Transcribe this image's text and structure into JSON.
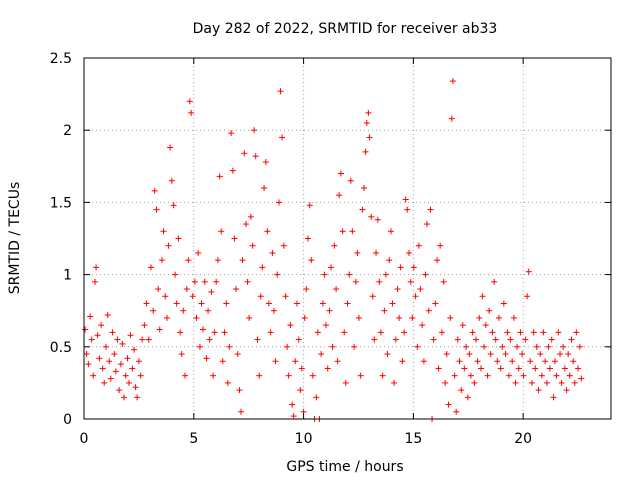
{
  "chart_data": {
    "type": "scatter",
    "title": "Day 282 of 2022, SRMTID for receiver ab33",
    "xlabel": "GPS time / hours",
    "ylabel": "SRMTID / TECUs",
    "xlim": [
      0,
      24
    ],
    "ylim": [
      0,
      2.5
    ],
    "xticks": [
      0,
      5,
      10,
      15,
      20
    ],
    "xtick_labels": [
      "0",
      "5",
      "10",
      "15",
      "20"
    ],
    "yticks": [
      0,
      0.5,
      1,
      1.5,
      2,
      2.5
    ],
    "ytick_labels": [
      "0",
      "0.5",
      "1",
      "1.5",
      "2",
      "2.5"
    ],
    "grid": true,
    "marker": "+",
    "color": "#ff0000",
    "series": [
      {
        "name": "SRMTID",
        "points": [
          [
            0.05,
            0.62
          ],
          [
            0.12,
            0.45
          ],
          [
            0.2,
            0.38
          ],
          [
            0.28,
            0.71
          ],
          [
            0.35,
            0.55
          ],
          [
            0.42,
            0.3
          ],
          [
            0.5,
            0.95
          ],
          [
            0.55,
            1.05
          ],
          [
            0.62,
            0.58
          ],
          [
            0.7,
            0.42
          ],
          [
            0.78,
            0.65
          ],
          [
            0.85,
            0.35
          ],
          [
            0.92,
            0.25
          ],
          [
            1.0,
            0.5
          ],
          [
            1.08,
            0.72
          ],
          [
            1.15,
            0.4
          ],
          [
            1.22,
            0.28
          ],
          [
            1.3,
            0.6
          ],
          [
            1.38,
            0.45
          ],
          [
            1.45,
            0.33
          ],
          [
            1.52,
            0.55
          ],
          [
            1.6,
            0.2
          ],
          [
            1.68,
            0.38
          ],
          [
            1.75,
            0.52
          ],
          [
            1.82,
            0.15
          ],
          [
            1.9,
            0.3
          ],
          [
            1.98,
            0.42
          ],
          [
            2.05,
            0.25
          ],
          [
            2.12,
            0.58
          ],
          [
            2.2,
            0.35
          ],
          [
            2.28,
            0.48
          ],
          [
            2.35,
            0.22
          ],
          [
            2.42,
            0.15
          ],
          [
            2.5,
            0.4
          ],
          [
            2.58,
            0.3
          ],
          [
            2.65,
            0.55
          ],
          [
            2.75,
            0.65
          ],
          [
            2.85,
            0.8
          ],
          [
            2.95,
            0.55
          ],
          [
            3.05,
            1.05
          ],
          [
            3.15,
            0.75
          ],
          [
            3.22,
            1.58
          ],
          [
            3.3,
            1.45
          ],
          [
            3.38,
            0.9
          ],
          [
            3.45,
            0.62
          ],
          [
            3.55,
            1.1
          ],
          [
            3.62,
            1.3
          ],
          [
            3.7,
            0.85
          ],
          [
            3.78,
            0.7
          ],
          [
            3.85,
            1.2
          ],
          [
            3.92,
            1.88
          ],
          [
            4.0,
            1.65
          ],
          [
            4.08,
            1.48
          ],
          [
            4.15,
            1.0
          ],
          [
            4.22,
            0.8
          ],
          [
            4.3,
            1.25
          ],
          [
            4.38,
            0.6
          ],
          [
            4.45,
            0.45
          ],
          [
            4.52,
            0.75
          ],
          [
            4.6,
            0.3
          ],
          [
            4.68,
            0.9
          ],
          [
            4.75,
            1.1
          ],
          [
            4.82,
            2.2
          ],
          [
            4.88,
            2.12
          ],
          [
            4.95,
            0.85
          ],
          [
            5.05,
            0.95
          ],
          [
            5.12,
            0.7
          ],
          [
            5.2,
            1.15
          ],
          [
            5.28,
            0.5
          ],
          [
            5.35,
            0.8
          ],
          [
            5.42,
            0.62
          ],
          [
            5.5,
            0.95
          ],
          [
            5.58,
            0.42
          ],
          [
            5.65,
            0.75
          ],
          [
            5.72,
            0.55
          ],
          [
            5.8,
            0.88
          ],
          [
            5.88,
            0.3
          ],
          [
            5.95,
            0.6
          ],
          [
            6.02,
            0.95
          ],
          [
            6.1,
            1.1
          ],
          [
            6.18,
            1.68
          ],
          [
            6.25,
            1.3
          ],
          [
            6.32,
            0.4
          ],
          [
            6.4,
            0.6
          ],
          [
            6.48,
            0.8
          ],
          [
            6.55,
            0.25
          ],
          [
            6.62,
            0.5
          ],
          [
            6.7,
            1.98
          ],
          [
            6.78,
            1.72
          ],
          [
            6.85,
            1.25
          ],
          [
            6.92,
            0.9
          ],
          [
            7.0,
            0.45
          ],
          [
            7.08,
            0.2
          ],
          [
            7.15,
            0.05
          ],
          [
            7.22,
            1.1
          ],
          [
            7.3,
            1.84
          ],
          [
            7.38,
            1.35
          ],
          [
            7.45,
            0.95
          ],
          [
            7.52,
            0.7
          ],
          [
            7.6,
            1.4
          ],
          [
            7.68,
            1.2
          ],
          [
            7.75,
            2.0
          ],
          [
            7.82,
            1.82
          ],
          [
            7.9,
            0.55
          ],
          [
            7.98,
            0.3
          ],
          [
            8.05,
            0.85
          ],
          [
            8.12,
            1.05
          ],
          [
            8.2,
            1.6
          ],
          [
            8.28,
            1.78
          ],
          [
            8.35,
            1.3
          ],
          [
            8.42,
            0.8
          ],
          [
            8.5,
            0.6
          ],
          [
            8.58,
            1.15
          ],
          [
            8.65,
            0.75
          ],
          [
            8.72,
            0.4
          ],
          [
            8.8,
            1.0
          ],
          [
            8.88,
            1.5
          ],
          [
            8.95,
            2.27
          ],
          [
            9.02,
            1.95
          ],
          [
            9.1,
            1.2
          ],
          [
            9.18,
            0.85
          ],
          [
            9.25,
            0.5
          ],
          [
            9.32,
            0.3
          ],
          [
            9.4,
            0.65
          ],
          [
            9.48,
            0.1
          ],
          [
            9.55,
            0.02
          ],
          [
            9.62,
            0.4
          ],
          [
            9.7,
            0.8
          ],
          [
            9.78,
            0.55
          ],
          [
            9.85,
            0.2
          ],
          [
            9.92,
            0.35
          ],
          [
            10.0,
            0.05
          ],
          [
            10.05,
            0.7
          ],
          [
            10.12,
            0.9
          ],
          [
            10.2,
            1.25
          ],
          [
            10.28,
            1.48
          ],
          [
            10.35,
            1.1
          ],
          [
            10.42,
            0.3
          ],
          [
            10.5,
            0.0
          ],
          [
            10.58,
            0.15
          ],
          [
            10.65,
            0.6
          ],
          [
            10.72,
            0.0
          ],
          [
            10.8,
            0.45
          ],
          [
            10.88,
            0.8
          ],
          [
            10.95,
            1.0
          ],
          [
            11.02,
            0.65
          ],
          [
            11.1,
            0.35
          ],
          [
            11.18,
            0.75
          ],
          [
            11.25,
            1.05
          ],
          [
            11.32,
            0.5
          ],
          [
            11.4,
            1.2
          ],
          [
            11.48,
            0.9
          ],
          [
            11.55,
            0.4
          ],
          [
            11.62,
            1.55
          ],
          [
            11.7,
            1.7
          ],
          [
            11.78,
            1.3
          ],
          [
            11.85,
            0.6
          ],
          [
            11.92,
            0.25
          ],
          [
            12.0,
            0.8
          ],
          [
            12.08,
            1.0
          ],
          [
            12.15,
            1.65
          ],
          [
            12.22,
            1.3
          ],
          [
            12.3,
            0.5
          ],
          [
            12.38,
            0.95
          ],
          [
            12.45,
            1.15
          ],
          [
            12.52,
            0.7
          ],
          [
            12.6,
            0.3
          ],
          [
            12.68,
            1.45
          ],
          [
            12.75,
            1.6
          ],
          [
            12.82,
            1.85
          ],
          [
            12.88,
            2.05
          ],
          [
            12.95,
            2.12
          ],
          [
            13.0,
            1.95
          ],
          [
            13.08,
            1.4
          ],
          [
            13.15,
            0.85
          ],
          [
            13.22,
            0.55
          ],
          [
            13.3,
            1.15
          ],
          [
            13.38,
            1.38
          ],
          [
            13.45,
            0.95
          ],
          [
            13.52,
            0.6
          ],
          [
            13.6,
            0.3
          ],
          [
            13.68,
            0.75
          ],
          [
            13.75,
            1.0
          ],
          [
            13.82,
            0.45
          ],
          [
            13.9,
            1.1
          ],
          [
            13.98,
            1.3
          ],
          [
            14.05,
            0.8
          ],
          [
            14.12,
            0.25
          ],
          [
            14.2,
            0.55
          ],
          [
            14.28,
            0.9
          ],
          [
            14.35,
            0.7
          ],
          [
            14.42,
            1.05
          ],
          [
            14.5,
            0.4
          ],
          [
            14.58,
            0.6
          ],
          [
            14.65,
            1.52
          ],
          [
            14.72,
            1.45
          ],
          [
            14.8,
            1.15
          ],
          [
            14.88,
            0.95
          ],
          [
            14.95,
            0.7
          ],
          [
            15.02,
            1.05
          ],
          [
            15.1,
            0.85
          ],
          [
            15.18,
            0.5
          ],
          [
            15.25,
            1.2
          ],
          [
            15.32,
            0.9
          ],
          [
            15.4,
            0.65
          ],
          [
            15.48,
            0.4
          ],
          [
            15.55,
            1.0
          ],
          [
            15.62,
            1.35
          ],
          [
            15.7,
            0.75
          ],
          [
            15.78,
            1.45
          ],
          [
            15.85,
            0.0
          ],
          [
            15.92,
            0.55
          ],
          [
            16.0,
            0.8
          ],
          [
            16.08,
            1.1
          ],
          [
            16.15,
            0.35
          ],
          [
            16.22,
            1.2
          ],
          [
            16.3,
            0.6
          ],
          [
            16.38,
            0.95
          ],
          [
            16.45,
            0.25
          ],
          [
            16.52,
            0.45
          ],
          [
            16.6,
            0.1
          ],
          [
            16.68,
            0.7
          ],
          [
            16.75,
            2.08
          ],
          [
            16.8,
            2.34
          ],
          [
            16.88,
            0.3
          ],
          [
            16.95,
            0.05
          ],
          [
            17.02,
            0.55
          ],
          [
            17.1,
            0.4
          ],
          [
            17.18,
            0.2
          ],
          [
            17.25,
            0.65
          ],
          [
            17.32,
            0.35
          ],
          [
            17.4,
            0.5
          ],
          [
            17.48,
            0.15
          ],
          [
            17.55,
            0.45
          ],
          [
            17.62,
            0.3
          ],
          [
            17.7,
            0.6
          ],
          [
            17.78,
            0.25
          ],
          [
            17.85,
            0.55
          ],
          [
            17.92,
            0.4
          ],
          [
            18.0,
            0.7
          ],
          [
            18.08,
            0.35
          ],
          [
            18.15,
            0.85
          ],
          [
            18.22,
            0.5
          ],
          [
            18.3,
            0.65
          ],
          [
            18.38,
            0.3
          ],
          [
            18.45,
            0.75
          ],
          [
            18.52,
            0.45
          ],
          [
            18.6,
            0.6
          ],
          [
            18.68,
            0.95
          ],
          [
            18.75,
            0.55
          ],
          [
            18.82,
            0.4
          ],
          [
            18.9,
            0.7
          ],
          [
            18.98,
            0.35
          ],
          [
            19.05,
            0.5
          ],
          [
            19.12,
            0.8
          ],
          [
            19.2,
            0.45
          ],
          [
            19.28,
            0.6
          ],
          [
            19.35,
            0.3
          ],
          [
            19.42,
            0.55
          ],
          [
            19.5,
            0.4
          ],
          [
            19.58,
            0.7
          ],
          [
            19.65,
            0.25
          ],
          [
            19.72,
            0.5
          ],
          [
            19.8,
            0.35
          ],
          [
            19.88,
            0.6
          ],
          [
            19.95,
            0.45
          ],
          [
            20.02,
            0.3
          ],
          [
            20.1,
            0.55
          ],
          [
            20.18,
            0.85
          ],
          [
            20.25,
            1.02
          ],
          [
            20.32,
            0.4
          ],
          [
            20.4,
            0.25
          ],
          [
            20.48,
            0.6
          ],
          [
            20.55,
            0.35
          ],
          [
            20.62,
            0.5
          ],
          [
            20.7,
            0.2
          ],
          [
            20.78,
            0.45
          ],
          [
            20.85,
            0.3
          ],
          [
            20.92,
            0.6
          ],
          [
            21.0,
            0.4
          ],
          [
            21.08,
            0.25
          ],
          [
            21.15,
            0.5
          ],
          [
            21.22,
            0.35
          ],
          [
            21.3,
            0.55
          ],
          [
            21.38,
            0.15
          ],
          [
            21.45,
            0.4
          ],
          [
            21.52,
            0.3
          ],
          [
            21.6,
            0.6
          ],
          [
            21.68,
            0.45
          ],
          [
            21.75,
            0.25
          ],
          [
            21.82,
            0.5
          ],
          [
            21.9,
            0.35
          ],
          [
            21.98,
            0.2
          ],
          [
            22.05,
            0.45
          ],
          [
            22.12,
            0.3
          ],
          [
            22.2,
            0.55
          ],
          [
            22.28,
            0.4
          ],
          [
            22.35,
            0.25
          ],
          [
            22.42,
            0.6
          ],
          [
            22.5,
            0.35
          ],
          [
            22.58,
            0.5
          ],
          [
            22.65,
            0.28
          ]
        ]
      }
    ]
  }
}
